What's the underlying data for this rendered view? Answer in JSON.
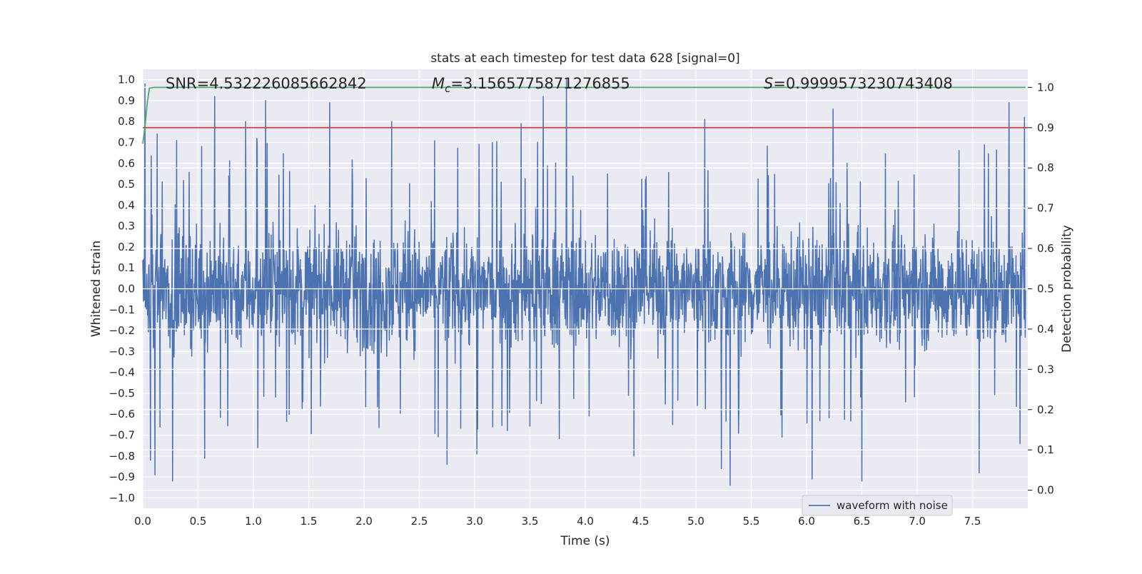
{
  "chart_data": {
    "type": "line",
    "title": "stats at each timestep for test data 628 [signal=0]",
    "xlabel": "Time (s)",
    "ylabel_left": "Whitened strain",
    "ylabel_right": "Detection probability",
    "xlim": [
      0.0,
      8.0
    ],
    "ylim_left": [
      -1.05,
      1.05
    ],
    "ylim_right": [
      -0.045,
      1.045
    ],
    "x_ticks": [
      "0.0",
      "0.5",
      "1.0",
      "1.5",
      "2.0",
      "2.5",
      "3.0",
      "3.5",
      "4.0",
      "4.5",
      "5.0",
      "5.5",
      "6.0",
      "6.5",
      "7.0",
      "7.5"
    ],
    "x_tick_values": [
      0.0,
      0.5,
      1.0,
      1.5,
      2.0,
      2.5,
      3.0,
      3.5,
      4.0,
      4.5,
      5.0,
      5.5,
      6.0,
      6.5,
      7.0,
      7.5
    ],
    "y_left_ticks": [
      "1.0",
      "0.9",
      "0.8",
      "0.7",
      "0.6",
      "0.5",
      "0.4",
      "0.3",
      "0.2",
      "0.1",
      "0.0",
      "−0.1",
      "−0.2",
      "−0.3",
      "−0.4",
      "−0.5",
      "−0.6",
      "−0.7",
      "−0.8",
      "−0.9",
      "−1.0"
    ],
    "y_left_tick_values": [
      1.0,
      0.9,
      0.8,
      0.7,
      0.6,
      0.5,
      0.4,
      0.3,
      0.2,
      0.1,
      0.0,
      -0.1,
      -0.2,
      -0.3,
      -0.4,
      -0.5,
      -0.6,
      -0.7,
      -0.8,
      -0.9,
      -1.0
    ],
    "y_right_ticks": [
      "1.0",
      "0.9",
      "0.8",
      "0.7",
      "0.6",
      "0.5",
      "0.4",
      "0.3",
      "0.2",
      "0.1",
      "0.0"
    ],
    "y_right_tick_values": [
      1.0,
      0.9,
      0.8,
      0.7,
      0.6,
      0.5,
      0.4,
      0.3,
      0.2,
      0.1,
      0.0
    ],
    "grid": true,
    "legend_placement": "lower-right",
    "annotations": {
      "snr": "SNR=4.532226085662842",
      "mc_symbol": "M",
      "mc_sub": "c",
      "mc_value": "=3.1565775871276855",
      "s_symbol": "S",
      "s_value": "=0.9999573230743408"
    },
    "series": [
      {
        "name": "waveform with noise",
        "axis": "left",
        "color": "#4c72b0",
        "kind": "noise",
        "x_range": [
          0.0,
          7.98
        ],
        "typical_envelope": [
          -0.45,
          0.45
        ],
        "peaks": [
          [
            0.02,
            0.98
          ],
          [
            0.13,
            0.74
          ],
          [
            0.27,
            0.87
          ],
          [
            0.65,
            0.92
          ],
          [
            0.93,
            0.8
          ],
          [
            1.11,
            0.9
          ],
          [
            1.69,
            0.89
          ],
          [
            2.25,
            0.8
          ],
          [
            3.42,
            0.79
          ],
          [
            3.62,
            0.92
          ],
          [
            3.83,
            1.0
          ],
          [
            5.08,
            0.81
          ],
          [
            6.24,
            0.86
          ],
          [
            7.83,
            0.89
          ],
          [
            7.97,
            0.82
          ]
        ],
        "troughs": [
          [
            0.07,
            -0.82
          ],
          [
            0.11,
            -0.89
          ],
          [
            0.27,
            -0.92
          ],
          [
            0.56,
            -0.81
          ],
          [
            1.04,
            -0.76
          ],
          [
            2.75,
            -0.84
          ],
          [
            3.02,
            -0.79
          ],
          [
            4.44,
            -0.8
          ],
          [
            5.23,
            -0.86
          ],
          [
            5.31,
            -0.94
          ],
          [
            6.05,
            -0.91
          ],
          [
            6.5,
            -0.92
          ],
          [
            7.56,
            -0.88
          ],
          [
            7.93,
            -0.74
          ]
        ]
      },
      {
        "name": "",
        "axis": "right",
        "color": "#55a868",
        "x": [
          0.0,
          0.02,
          0.04,
          0.06,
          0.1,
          0.5,
          1.0,
          2.0,
          3.0,
          4.0,
          5.0,
          6.0,
          7.0,
          7.98
        ],
        "values": [
          0.86,
          0.9,
          0.96,
          0.998,
          1.0,
          1.0,
          1.0,
          1.0,
          1.0,
          1.0,
          1.0,
          1.0,
          1.0,
          1.0
        ]
      },
      {
        "name": "",
        "axis": "right",
        "color": "#c44e52",
        "x": [
          0.0,
          8.0
        ],
        "values": [
          0.9,
          0.9
        ]
      }
    ]
  }
}
